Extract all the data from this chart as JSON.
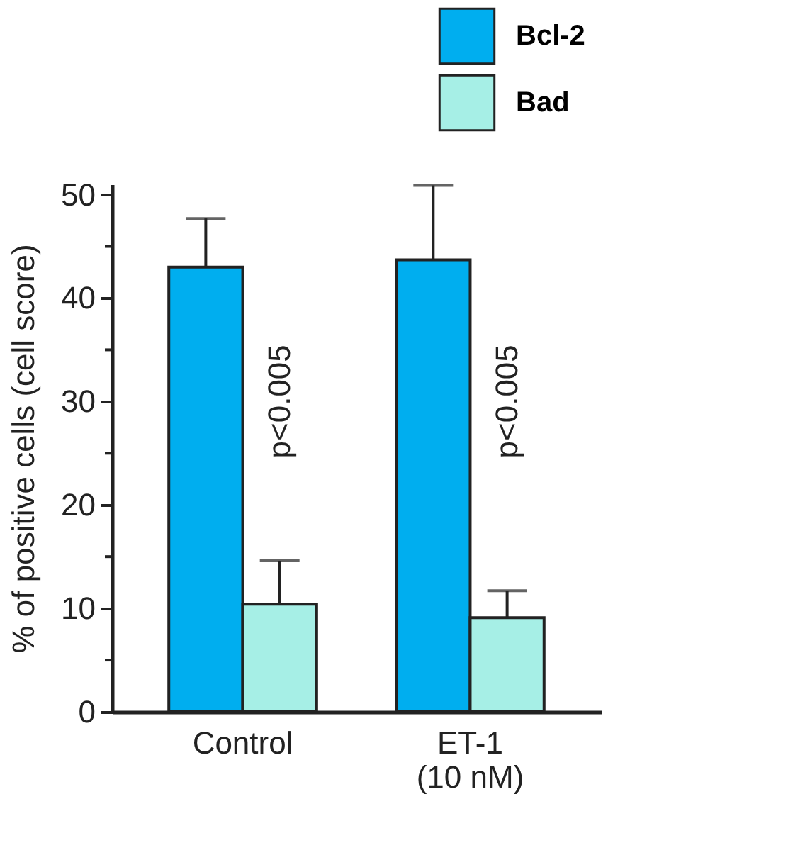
{
  "chart_data": {
    "type": "bar",
    "ylabel": "% of positive cells (cell score)",
    "categories": [
      "Control",
      "ET-1\n(10 nM)"
    ],
    "series": [
      {
        "name": "Bcl-2",
        "color": "#00aeef",
        "values": [
          43,
          43.7
        ],
        "errors": [
          [
            43,
            47.7
          ],
          [
            43.7,
            50.9
          ]
        ]
      },
      {
        "name": "Bad",
        "color": "#a6efe6",
        "values": [
          10.4,
          9.1
        ],
        "errors": [
          [
            10.4,
            14.6
          ],
          [
            9.1,
            11.7
          ]
        ]
      }
    ],
    "ylim": [
      0,
      51
    ],
    "yticks": [
      0,
      {
        "value": 5,
        "label": null
      },
      10,
      {
        "value": 15,
        "label": null
      },
      20,
      {
        "value": 25,
        "label": null
      },
      30,
      {
        "value": 35,
        "label": null
      },
      40,
      {
        "value": 45,
        "label": null
      },
      50
    ],
    "annotations": [
      {
        "text": "p<0.005",
        "x": "Control",
        "y": 30
      },
      {
        "text": "p<0.005",
        "x": "ET-1\n(10 nM)",
        "y": 30
      }
    ],
    "grid": false,
    "legend": "top right"
  }
}
